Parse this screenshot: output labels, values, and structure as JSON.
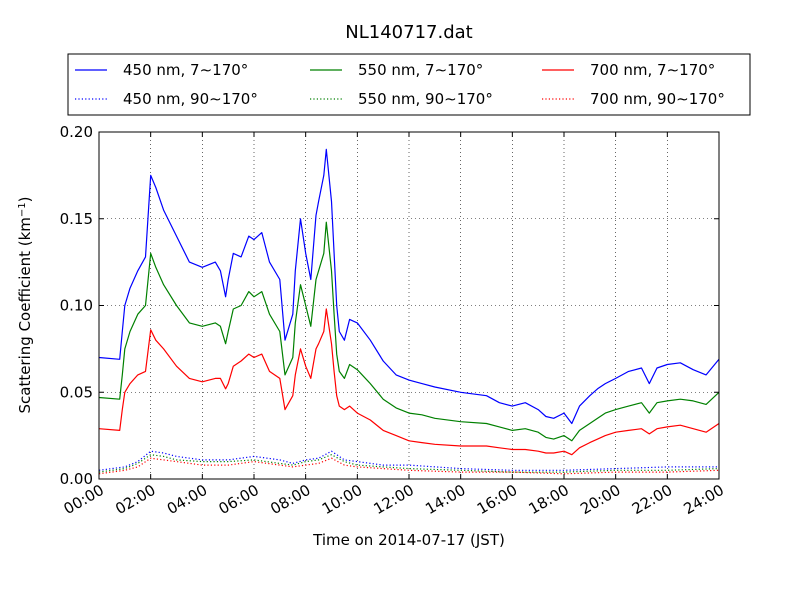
{
  "chart_data": {
    "type": "line",
    "title": "NL140717.dat",
    "xlabel": "Time on 2014-07-17 (JST)",
    "ylabel": "Scattering Coefficient (km",
    "ylabel_sup": "−1",
    "ylabel_end": ")",
    "xlim": [
      0,
      24
    ],
    "ylim": [
      0,
      0.2
    ],
    "x_ticks": [
      0,
      2,
      4,
      6,
      8,
      10,
      12,
      14,
      16,
      18,
      20,
      22,
      24
    ],
    "x_tick_labels": [
      "00:00",
      "02:00",
      "04:00",
      "06:00",
      "08:00",
      "10:00",
      "12:00",
      "14:00",
      "16:00",
      "18:00",
      "20:00",
      "22:00",
      "24:00"
    ],
    "y_ticks": [
      0,
      0.05,
      0.1,
      0.15,
      0.2
    ],
    "y_tick_labels": [
      "0.00",
      "0.05",
      "0.10",
      "0.15",
      "0.20"
    ],
    "grid": true,
    "legend_position": "top",
    "series": [
      {
        "name": "450 nm, 7∼170°",
        "color": "#0000ff",
        "style": "solid",
        "x": [
          0,
          0.8,
          0.9,
          1.0,
          1.2,
          1.5,
          1.8,
          2.0,
          2.2,
          2.5,
          3.0,
          3.5,
          4.0,
          4.5,
          4.7,
          4.9,
          5.0,
          5.2,
          5.5,
          5.8,
          6.0,
          6.3,
          6.6,
          7.0,
          7.2,
          7.5,
          7.6,
          7.8,
          8.0,
          8.2,
          8.4,
          8.5,
          8.7,
          8.8,
          9.0,
          9.1,
          9.2,
          9.3,
          9.5,
          9.7,
          10.0,
          10.5,
          11.0,
          11.5,
          12.0,
          12.5,
          13.0,
          14.0,
          15.0,
          15.5,
          16.0,
          16.5,
          17.0,
          17.3,
          17.6,
          18.0,
          18.3,
          18.6,
          19.0,
          19.3,
          19.6,
          20.0,
          20.5,
          21.0,
          21.3,
          21.6,
          22.0,
          22.5,
          23.0,
          23.5,
          24.0
        ],
        "y": [
          0.07,
          0.069,
          0.085,
          0.1,
          0.11,
          0.12,
          0.128,
          0.175,
          0.168,
          0.155,
          0.14,
          0.125,
          0.122,
          0.125,
          0.12,
          0.105,
          0.115,
          0.13,
          0.128,
          0.14,
          0.138,
          0.142,
          0.125,
          0.115,
          0.08,
          0.095,
          0.12,
          0.15,
          0.13,
          0.115,
          0.152,
          0.16,
          0.175,
          0.19,
          0.16,
          0.13,
          0.1,
          0.085,
          0.08,
          0.092,
          0.09,
          0.08,
          0.068,
          0.06,
          0.057,
          0.055,
          0.053,
          0.05,
          0.048,
          0.044,
          0.042,
          0.044,
          0.04,
          0.036,
          0.035,
          0.038,
          0.032,
          0.042,
          0.048,
          0.052,
          0.055,
          0.058,
          0.062,
          0.064,
          0.055,
          0.064,
          0.066,
          0.067,
          0.063,
          0.06,
          0.069
        ]
      },
      {
        "name": "550 nm, 7∼170°",
        "color": "#008000",
        "style": "solid",
        "x": [
          0,
          0.8,
          0.9,
          1.0,
          1.2,
          1.5,
          1.8,
          2.0,
          2.2,
          2.5,
          3.0,
          3.5,
          4.0,
          4.5,
          4.7,
          4.9,
          5.0,
          5.2,
          5.5,
          5.8,
          6.0,
          6.3,
          6.6,
          7.0,
          7.2,
          7.5,
          7.6,
          7.8,
          8.0,
          8.2,
          8.4,
          8.5,
          8.7,
          8.8,
          9.0,
          9.1,
          9.2,
          9.3,
          9.5,
          9.7,
          10.0,
          10.5,
          11.0,
          11.5,
          12.0,
          12.5,
          13.0,
          14.0,
          15.0,
          15.5,
          16.0,
          16.5,
          17.0,
          17.3,
          17.6,
          18.0,
          18.3,
          18.6,
          19.0,
          19.3,
          19.6,
          20.0,
          20.5,
          21.0,
          21.3,
          21.6,
          22.0,
          22.5,
          23.0,
          23.5,
          24.0
        ],
        "y": [
          0.047,
          0.046,
          0.06,
          0.075,
          0.085,
          0.095,
          0.1,
          0.13,
          0.122,
          0.112,
          0.1,
          0.09,
          0.088,
          0.09,
          0.088,
          0.078,
          0.085,
          0.098,
          0.1,
          0.108,
          0.105,
          0.108,
          0.095,
          0.085,
          0.06,
          0.07,
          0.09,
          0.112,
          0.1,
          0.088,
          0.115,
          0.12,
          0.13,
          0.148,
          0.12,
          0.095,
          0.072,
          0.062,
          0.058,
          0.066,
          0.063,
          0.055,
          0.046,
          0.041,
          0.038,
          0.037,
          0.035,
          0.033,
          0.032,
          0.03,
          0.028,
          0.029,
          0.027,
          0.024,
          0.023,
          0.025,
          0.022,
          0.028,
          0.032,
          0.035,
          0.038,
          0.04,
          0.042,
          0.044,
          0.038,
          0.044,
          0.045,
          0.046,
          0.045,
          0.043,
          0.05
        ]
      },
      {
        "name": "700 nm, 7∼170°",
        "color": "#ff0000",
        "style": "solid",
        "x": [
          0,
          0.8,
          0.9,
          1.0,
          1.2,
          1.5,
          1.8,
          2.0,
          2.2,
          2.5,
          3.0,
          3.5,
          4.0,
          4.5,
          4.7,
          4.9,
          5.0,
          5.2,
          5.5,
          5.8,
          6.0,
          6.3,
          6.6,
          7.0,
          7.2,
          7.5,
          7.6,
          7.8,
          8.0,
          8.2,
          8.4,
          8.5,
          8.7,
          8.8,
          9.0,
          9.1,
          9.2,
          9.3,
          9.5,
          9.7,
          10.0,
          10.5,
          11.0,
          11.5,
          12.0,
          12.5,
          13.0,
          14.0,
          15.0,
          15.5,
          16.0,
          16.5,
          17.0,
          17.3,
          17.6,
          18.0,
          18.3,
          18.6,
          19.0,
          19.3,
          19.6,
          20.0,
          20.5,
          21.0,
          21.3,
          21.6,
          22.0,
          22.5,
          23.0,
          23.5,
          24.0
        ],
        "y": [
          0.029,
          0.028,
          0.04,
          0.05,
          0.055,
          0.06,
          0.062,
          0.086,
          0.08,
          0.075,
          0.065,
          0.058,
          0.056,
          0.058,
          0.058,
          0.052,
          0.055,
          0.065,
          0.068,
          0.072,
          0.07,
          0.072,
          0.062,
          0.058,
          0.04,
          0.048,
          0.06,
          0.075,
          0.065,
          0.058,
          0.075,
          0.078,
          0.085,
          0.098,
          0.078,
          0.062,
          0.048,
          0.042,
          0.04,
          0.042,
          0.038,
          0.034,
          0.028,
          0.025,
          0.022,
          0.021,
          0.02,
          0.019,
          0.019,
          0.018,
          0.017,
          0.017,
          0.016,
          0.015,
          0.015,
          0.016,
          0.014,
          0.018,
          0.021,
          0.023,
          0.025,
          0.027,
          0.028,
          0.029,
          0.026,
          0.029,
          0.03,
          0.031,
          0.029,
          0.027,
          0.032
        ]
      },
      {
        "name": "450 nm, 90∼170°",
        "color": "#0000ff",
        "style": "dotted",
        "x": [
          0,
          1.0,
          1.5,
          2.0,
          2.5,
          3.0,
          4.0,
          5.0,
          6.0,
          7.0,
          7.5,
          8.0,
          8.5,
          9.0,
          9.5,
          10.0,
          11.0,
          12.0,
          14.0,
          16.0,
          18.0,
          20.0,
          22.0,
          24.0
        ],
        "y": [
          0.005,
          0.007,
          0.01,
          0.016,
          0.015,
          0.013,
          0.011,
          0.011,
          0.013,
          0.011,
          0.009,
          0.011,
          0.012,
          0.016,
          0.011,
          0.01,
          0.008,
          0.008,
          0.006,
          0.005,
          0.005,
          0.006,
          0.007,
          0.007
        ]
      },
      {
        "name": "550 nm, 90∼170°",
        "color": "#008000",
        "style": "dotted",
        "x": [
          0,
          1.0,
          1.5,
          2.0,
          2.5,
          3.0,
          4.0,
          5.0,
          6.0,
          7.0,
          7.5,
          8.0,
          8.5,
          9.0,
          9.5,
          10.0,
          11.0,
          12.0,
          14.0,
          16.0,
          18.0,
          20.0,
          22.0,
          24.0
        ],
        "y": [
          0.004,
          0.006,
          0.009,
          0.014,
          0.013,
          0.011,
          0.01,
          0.01,
          0.011,
          0.009,
          0.008,
          0.01,
          0.011,
          0.014,
          0.01,
          0.008,
          0.007,
          0.006,
          0.005,
          0.004,
          0.004,
          0.005,
          0.005,
          0.006
        ]
      },
      {
        "name": "700 nm, 90∼170°",
        "color": "#ff0000",
        "style": "dotted",
        "x": [
          0,
          1.0,
          1.5,
          2.0,
          2.5,
          3.0,
          4.0,
          5.0,
          6.0,
          7.0,
          7.5,
          8.0,
          8.5,
          9.0,
          9.5,
          10.0,
          11.0,
          12.0,
          14.0,
          16.0,
          18.0,
          20.0,
          22.0,
          24.0
        ],
        "y": [
          0.003,
          0.005,
          0.007,
          0.012,
          0.011,
          0.01,
          0.008,
          0.008,
          0.01,
          0.008,
          0.007,
          0.008,
          0.009,
          0.012,
          0.008,
          0.007,
          0.006,
          0.005,
          0.004,
          0.004,
          0.003,
          0.004,
          0.004,
          0.005
        ]
      }
    ]
  }
}
